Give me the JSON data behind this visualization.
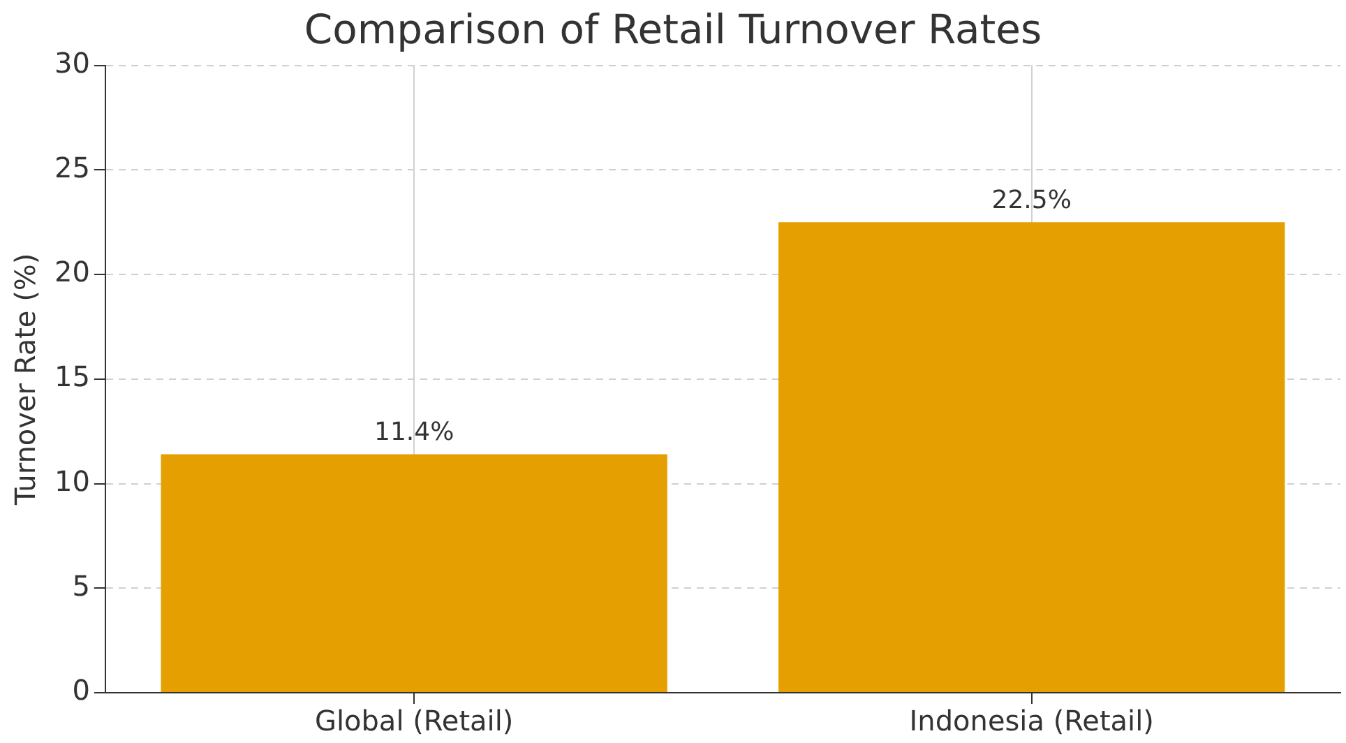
{
  "chart_data": {
    "type": "bar",
    "title": "Comparison of Retail Turnover Rates",
    "ylabel": "Turnover Rate (%)",
    "categories": [
      "Global (Retail)",
      "Indonesia (Retail)"
    ],
    "values": [
      11.4,
      22.5
    ],
    "value_labels": [
      "11.4%",
      "22.5%"
    ],
    "color": "#e69f00",
    "ylim": [
      0,
      30
    ],
    "yticks": [
      0,
      5,
      10,
      15,
      20,
      25,
      30
    ],
    "grid": true
  }
}
